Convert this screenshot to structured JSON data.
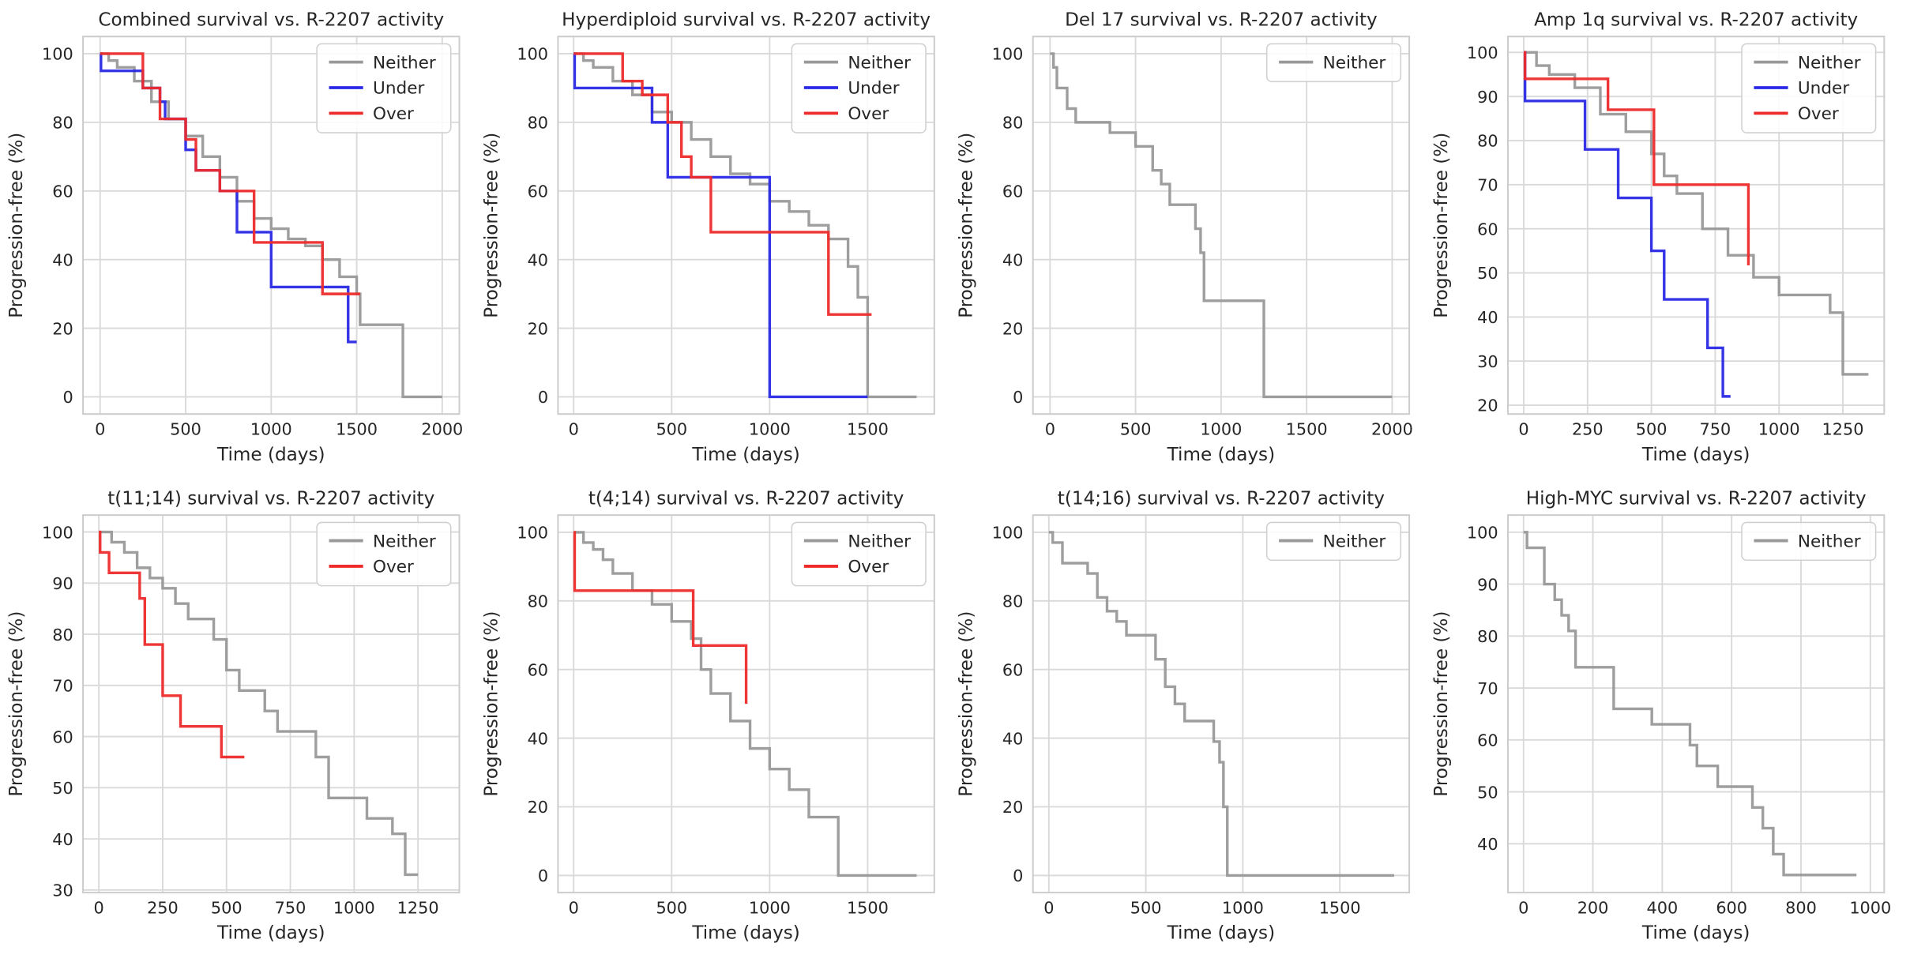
{
  "chart_data": [
    {
      "type": "line",
      "title": "Combined survival vs. R-2207 activity",
      "xlabel": "Time (days)",
      "ylabel": "Progression-free (%)",
      "xlim": [
        -100,
        2100
      ],
      "ylim": [
        -5,
        105
      ],
      "xticks": [
        0,
        500,
        1000,
        1500,
        2000
      ],
      "yticks": [
        0,
        20,
        40,
        60,
        80,
        100
      ],
      "grid": true,
      "legend": "upper right",
      "drawstyle": "steps-post",
      "series": [
        {
          "name": "Neither",
          "color": "#999999",
          "x": [
            0,
            50,
            100,
            200,
            300,
            400,
            500,
            600,
            700,
            800,
            900,
            1000,
            1100,
            1200,
            1300,
            1400,
            1500,
            1520,
            1770,
            2000
          ],
          "values": [
            100,
            98,
            96,
            92,
            86,
            81,
            76,
            70,
            64,
            57,
            52,
            49,
            46,
            44,
            40,
            35,
            30,
            21,
            0,
            0
          ]
        },
        {
          "name": "Under",
          "color": "#2a2ae6",
          "x": [
            0,
            5,
            250,
            350,
            380,
            500,
            560,
            700,
            800,
            1000,
            1450,
            1500
          ],
          "values": [
            100,
            95,
            90,
            86,
            81,
            72,
            66,
            60,
            48,
            32,
            16,
            16
          ]
        },
        {
          "name": "Over",
          "color": "#ee2b2b",
          "x": [
            0,
            250,
            350,
            500,
            560,
            700,
            900,
            1300,
            1520
          ],
          "values": [
            100,
            90,
            81,
            75,
            66,
            60,
            45,
            30,
            30
          ]
        }
      ]
    },
    {
      "type": "line",
      "title": "Hyperdiploid survival vs. R-2207 activity",
      "xlabel": "Time (days)",
      "ylabel": "Progression-free (%)",
      "xlim": [
        -80,
        1840
      ],
      "ylim": [
        -5,
        105
      ],
      "xticks": [
        0,
        500,
        1000,
        1500
      ],
      "yticks": [
        0,
        20,
        40,
        60,
        80,
        100
      ],
      "grid": true,
      "legend": "upper right",
      "drawstyle": "steps-post",
      "series": [
        {
          "name": "Neither",
          "color": "#999999",
          "x": [
            0,
            50,
            100,
            200,
            300,
            400,
            500,
            600,
            700,
            800,
            900,
            1000,
            1100,
            1200,
            1300,
            1400,
            1450,
            1500,
            1750
          ],
          "values": [
            100,
            98,
            96,
            92,
            88,
            83,
            80,
            75,
            70,
            65,
            62,
            57,
            54,
            50,
            46,
            38,
            29,
            0,
            0
          ]
        },
        {
          "name": "Under",
          "color": "#2a2ae6",
          "x": [
            0,
            5,
            400,
            480,
            1000,
            1500
          ],
          "values": [
            100,
            90,
            80,
            64,
            0,
            0
          ]
        },
        {
          "name": "Over",
          "color": "#ee2b2b",
          "x": [
            0,
            250,
            350,
            480,
            550,
            600,
            700,
            1300,
            1520
          ],
          "values": [
            100,
            92,
            88,
            80,
            70,
            64,
            48,
            24,
            24
          ]
        }
      ]
    },
    {
      "type": "line",
      "title": "Del 17 survival vs. R-2207 activity",
      "xlabel": "Time (days)",
      "ylabel": "Progression-free (%)",
      "xlim": [
        -100,
        2100
      ],
      "ylim": [
        -5,
        105
      ],
      "xticks": [
        0,
        500,
        1000,
        1500,
        2000
      ],
      "yticks": [
        0,
        20,
        40,
        60,
        80,
        100
      ],
      "grid": true,
      "legend": "upper right",
      "drawstyle": "steps-post",
      "series": [
        {
          "name": "Neither",
          "color": "#999999",
          "x": [
            0,
            20,
            40,
            100,
            150,
            350,
            500,
            600,
            650,
            700,
            850,
            880,
            900,
            1250,
            2000
          ],
          "values": [
            100,
            96,
            90,
            84,
            80,
            77,
            73,
            66,
            62,
            56,
            49,
            42,
            28,
            0,
            0
          ]
        }
      ]
    },
    {
      "type": "line",
      "title": "Amp 1q survival vs. R-2207 activity",
      "xlabel": "Time (days)",
      "ylabel": "Progression-free (%)",
      "xlim": [
        -62,
        1412
      ],
      "ylim": [
        18,
        103.6
      ],
      "xticks": [
        0,
        250,
        500,
        750,
        1000,
        1250
      ],
      "yticks": [
        20,
        30,
        40,
        50,
        60,
        70,
        80,
        90,
        100
      ],
      "grid": true,
      "legend": "upper right",
      "drawstyle": "steps-post",
      "series": [
        {
          "name": "Neither",
          "color": "#999999",
          "x": [
            0,
            50,
            100,
            200,
            300,
            400,
            500,
            550,
            600,
            700,
            800,
            900,
            1000,
            1200,
            1250,
            1350
          ],
          "values": [
            100,
            97,
            95,
            92,
            86,
            82,
            77,
            72,
            68,
            60,
            54,
            49,
            45,
            41,
            27,
            27
          ]
        },
        {
          "name": "Under",
          "color": "#2a2ae6",
          "x": [
            0,
            5,
            240,
            370,
            500,
            550,
            720,
            780,
            810
          ],
          "values": [
            100,
            89,
            78,
            67,
            55,
            44,
            33,
            22,
            22
          ]
        },
        {
          "name": "Over",
          "color": "#ee2b2b",
          "x": [
            0,
            5,
            330,
            510,
            880,
            885
          ],
          "values": [
            100,
            94,
            87,
            70,
            52,
            52
          ]
        }
      ]
    },
    {
      "type": "line",
      "title": "t(11;14) survival vs. R-2207 activity",
      "xlabel": "Time (days)",
      "ylabel": "Progression-free (%)",
      "xlim": [
        -62,
        1412
      ],
      "ylim": [
        29.5,
        103.3
      ],
      "xticks": [
        0,
        250,
        500,
        750,
        1000,
        1250
      ],
      "yticks": [
        30,
        40,
        50,
        60,
        70,
        80,
        90,
        100
      ],
      "grid": true,
      "legend": "upper right",
      "drawstyle": "steps-post",
      "series": [
        {
          "name": "Neither",
          "color": "#999999",
          "x": [
            0,
            50,
            100,
            150,
            200,
            250,
            300,
            350,
            450,
            500,
            550,
            650,
            700,
            850,
            900,
            1050,
            1100,
            1150,
            1200,
            1250
          ],
          "values": [
            100,
            98,
            96,
            93,
            91,
            89,
            86,
            83,
            79,
            73,
            69,
            65,
            61,
            56,
            48,
            44,
            44,
            41,
            33,
            33
          ]
        },
        {
          "name": "Over",
          "color": "#ee2b2b",
          "x": [
            0,
            5,
            40,
            160,
            180,
            250,
            320,
            480,
            570
          ],
          "values": [
            100,
            96,
            92,
            87,
            78,
            68,
            62,
            56,
            56
          ]
        }
      ]
    },
    {
      "type": "line",
      "title": "t(4;14) survival vs. R-2207 activity",
      "xlabel": "Time (days)",
      "ylabel": "Progression-free (%)",
      "xlim": [
        -80,
        1840
      ],
      "ylim": [
        -5,
        105
      ],
      "xticks": [
        0,
        500,
        1000,
        1500
      ],
      "yticks": [
        0,
        20,
        40,
        60,
        80,
        100
      ],
      "grid": true,
      "legend": "upper right",
      "drawstyle": "steps-post",
      "series": [
        {
          "name": "Neither",
          "color": "#999999",
          "x": [
            0,
            50,
            100,
            150,
            200,
            300,
            400,
            500,
            600,
            650,
            700,
            800,
            900,
            1000,
            1100,
            1200,
            1350,
            1750
          ],
          "values": [
            100,
            97,
            95,
            92,
            88,
            83,
            79,
            74,
            69,
            60,
            53,
            45,
            37,
            31,
            25,
            17,
            0,
            0
          ]
        },
        {
          "name": "Over",
          "color": "#ee2b2b",
          "x": [
            0,
            5,
            610,
            880
          ],
          "values": [
            100,
            83,
            67,
            50
          ]
        }
      ]
    },
    {
      "type": "line",
      "title": "t(14;16) survival vs. R-2207 activity",
      "xlabel": "Time (days)",
      "ylabel": "Progression-free (%)",
      "xlim": [
        -82,
        1858
      ],
      "ylim": [
        -5,
        105
      ],
      "xticks": [
        0,
        500,
        1000,
        1500
      ],
      "yticks": [
        0,
        20,
        40,
        60,
        80,
        100
      ],
      "grid": true,
      "legend": "upper right",
      "drawstyle": "steps-post",
      "series": [
        {
          "name": "Neither",
          "color": "#999999",
          "x": [
            0,
            20,
            70,
            200,
            250,
            300,
            350,
            400,
            550,
            600,
            650,
            700,
            850,
            880,
            900,
            920,
            1780
          ],
          "values": [
            100,
            97,
            91,
            88,
            81,
            77,
            74,
            70,
            63,
            55,
            50,
            45,
            39,
            33,
            20,
            0,
            0
          ]
        }
      ]
    },
    {
      "type": "line",
      "title": "High-MYC survival vs. R-2207 activity",
      "xlabel": "Time (days)",
      "ylabel": "Progression-free (%)",
      "xlim": [
        -45,
        1040
      ],
      "ylim": [
        30.6,
        103.3
      ],
      "xticks": [
        0,
        200,
        400,
        600,
        800,
        1000
      ],
      "yticks": [
        40,
        50,
        60,
        70,
        80,
        90,
        100
      ],
      "grid": true,
      "legend": "upper right",
      "drawstyle": "steps-post",
      "series": [
        {
          "name": "Neither",
          "color": "#999999",
          "x": [
            0,
            10,
            60,
            90,
            110,
            130,
            150,
            260,
            370,
            480,
            500,
            560,
            660,
            690,
            720,
            750,
            960
          ],
          "values": [
            100,
            97,
            90,
            87,
            84,
            81,
            74,
            66,
            63,
            59,
            55,
            51,
            47,
            43,
            38,
            34,
            34
          ]
        }
      ]
    }
  ]
}
